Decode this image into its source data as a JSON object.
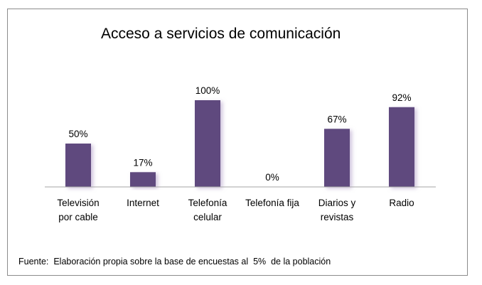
{
  "chart_data": {
    "type": "bar",
    "title": "Acceso a servicios de comunicación",
    "categories": [
      [
        "Televisión",
        "por cable"
      ],
      [
        "Internet"
      ],
      [
        "Telefonía",
        "celular"
      ],
      [
        "Telefonía fija"
      ],
      [
        "Diarios y",
        "revistas"
      ],
      [
        "Radio"
      ]
    ],
    "values": [
      50,
      17,
      100,
      0,
      67,
      92
    ],
    "data_labels": [
      "50%",
      "17%",
      "100%",
      "0%",
      "67%",
      "92%"
    ],
    "ylim": [
      0,
      100
    ],
    "bar_color": "#5e4a7e",
    "grid": false,
    "legend": "none"
  },
  "source_text": "Fuente:  Elaboración propia sobre la base de encuestas al  5%  de la población"
}
